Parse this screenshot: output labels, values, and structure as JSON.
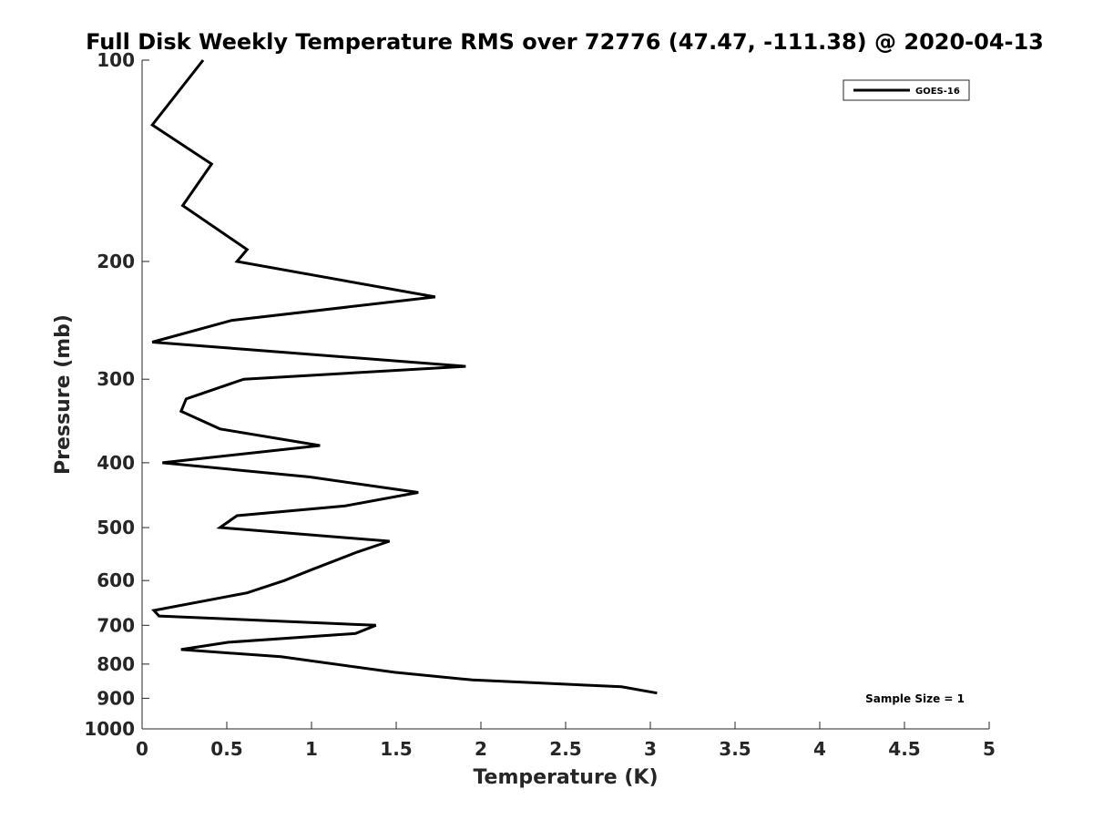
{
  "chart_data": {
    "type": "line",
    "title": "Full Disk Weekly Temperature RMS over 72776 (47.47, -111.38) @ 2020-04-13",
    "xlabel": "Temperature (K)",
    "ylabel": "Pressure (mb)",
    "xlim": [
      0,
      5
    ],
    "ylim": [
      100,
      1000
    ],
    "y_scale": "log",
    "y_reversed": true,
    "x_ticks": [
      "0",
      "0.5",
      "1",
      "1.5",
      "2",
      "2.5",
      "3",
      "3.5",
      "4",
      "4.5",
      "5"
    ],
    "y_ticks": [
      "100",
      "200",
      "300",
      "400",
      "500",
      "600",
      "700",
      "800",
      "900",
      "1000"
    ],
    "grid": false,
    "legend_position": "top-right",
    "series": [
      {
        "name": "GOES-16",
        "color": "#000000",
        "points": [
          [
            0.36,
            100
          ],
          [
            0.06,
            125
          ],
          [
            0.41,
            143
          ],
          [
            0.24,
            165
          ],
          [
            0.62,
            192
          ],
          [
            0.56,
            200
          ],
          [
            1.73,
            226
          ],
          [
            0.53,
            245
          ],
          [
            0.06,
            264
          ],
          [
            1.91,
            287
          ],
          [
            0.6,
            300
          ],
          [
            0.26,
            321
          ],
          [
            0.23,
            335
          ],
          [
            0.46,
            356
          ],
          [
            1.05,
            377
          ],
          [
            0.12,
            400
          ],
          [
            0.99,
            420
          ],
          [
            1.63,
            443
          ],
          [
            1.2,
            464
          ],
          [
            0.56,
            480
          ],
          [
            0.46,
            500
          ],
          [
            1.46,
            524
          ],
          [
            1.27,
            544
          ],
          [
            1.0,
            578
          ],
          [
            0.84,
            600
          ],
          [
            0.62,
            626
          ],
          [
            0.07,
            665
          ],
          [
            0.1,
            678
          ],
          [
            1.38,
            700
          ],
          [
            1.26,
            720
          ],
          [
            0.51,
            742
          ],
          [
            0.23,
            761
          ],
          [
            0.82,
            780
          ],
          [
            1.49,
            823
          ],
          [
            1.95,
            845
          ],
          [
            2.83,
            865
          ],
          [
            3.04,
            884
          ]
        ]
      }
    ],
    "annotations": [
      "Sample Size = 1"
    ]
  }
}
